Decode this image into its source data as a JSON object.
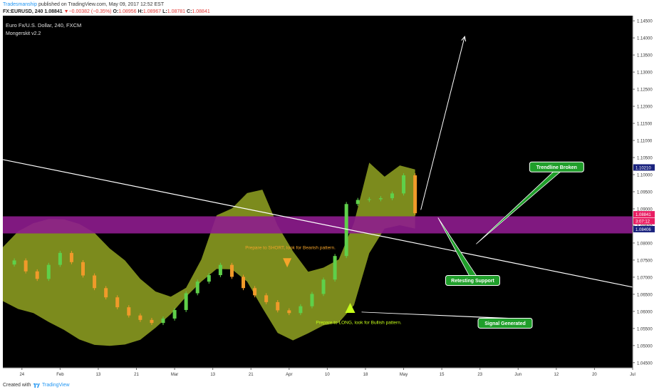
{
  "header": {
    "author": "Tradesmanship",
    "published": " published on TradingView.com, May 09, 2017 12:52 EST",
    "symbol": "FX:EURUSD, 240",
    "last_price": "1.08841",
    "change": "−0.00382 (−0.35%)",
    "open_label": "O:",
    "open": "1.08956",
    "high_label": "H:",
    "high": "1.08967",
    "low_label": "L:",
    "low": "1.08781",
    "close_label": "C:",
    "close": "1.08841"
  },
  "footer": {
    "created_with": "Created with",
    "brand": "TradingView"
  },
  "colors": {
    "background": "#000000",
    "band": "#8a9a20",
    "zone": "#8e1c8e",
    "annotation_box": "#1f9e2a",
    "candle_up": "#5fd04a",
    "candle_down": "#f09a2a",
    "trendline": "#ffffff"
  },
  "chart_data": {
    "type": "line",
    "title": "Euro Fx/U.S. Dollar, 240, FXCM",
    "subtitle": "Mongerskit v2.2",
    "x_ticks": [
      "24",
      "Feb",
      "13",
      "21",
      "Mar",
      "13",
      "21",
      "Apr",
      "10",
      "18",
      "May",
      "15",
      "23",
      "Jun",
      "12",
      "20",
      "Jul"
    ],
    "y_ticks": [
      "1.14500",
      "1.14000",
      "1.13500",
      "1.13000",
      "1.12500",
      "1.12000",
      "1.11500",
      "1.11000",
      "1.10500",
      "1.10000",
      "1.09500",
      "1.09000",
      "1.08500",
      "1.08000",
      "1.07500",
      "1.07000",
      "1.06500",
      "1.06000",
      "1.05500",
      "1.05000",
      "1.04500"
    ],
    "ylim": [
      1.0435,
      1.1465
    ],
    "x_range": [
      0,
      16.5
    ],
    "price_labels": [
      {
        "text": "1.10210",
        "value": 1.1021,
        "color": "#1a237e"
      },
      {
        "text": "1.08841",
        "value": 1.08841,
        "color": "#e91e63"
      },
      {
        "text": "3:07:12",
        "value": 1.0864,
        "color": "#e91e63"
      },
      {
        "text": "1.08406",
        "value": 1.08406,
        "color": "#1a237e"
      }
    ],
    "support_zone": [
      1.0828,
      1.0878
    ],
    "trendline": {
      "x": [
        0,
        16.5
      ],
      "y": [
        1.1044,
        1.0671
      ]
    },
    "forecast_arrow": {
      "x": [
        10.95,
        12.1
      ],
      "y": [
        1.0897,
        1.1404
      ]
    },
    "close_series": {
      "x": [
        0,
        0.3,
        0.6,
        0.9,
        1.2,
        1.5,
        1.8,
        2.1,
        2.4,
        2.7,
        3,
        3.3,
        3.6,
        3.9,
        4.2,
        4.5,
        4.8,
        5.1,
        5.4,
        5.7,
        6,
        6.3,
        6.6,
        6.9,
        7.2,
        7.5,
        7.8,
        8.1,
        8.4,
        8.7,
        9,
        9.3,
        9.6,
        9.9,
        10.2,
        10.5,
        10.8
      ],
      "y": [
        1.0737,
        1.0749,
        1.0717,
        1.0695,
        1.0736,
        1.0771,
        1.0744,
        1.0705,
        1.0668,
        1.0641,
        1.0612,
        1.0588,
        1.0575,
        1.0566,
        1.0579,
        1.0604,
        1.0653,
        1.0687,
        1.0706,
        1.0736,
        1.0701,
        1.0668,
        1.0647,
        1.0627,
        1.0603,
        1.0595,
        1.0615,
        1.0651,
        1.0693,
        1.0762,
        1.0914,
        1.0926,
        1.0928,
        1.0931,
        1.0945,
        1.0998,
        1.0887
      ]
    },
    "band": {
      "x": [
        0,
        0.4,
        0.8,
        1.2,
        1.6,
        2,
        2.4,
        2.8,
        3.2,
        3.6,
        4,
        4.4,
        4.8,
        5.2,
        5.6,
        6,
        6.4,
        6.8,
        7.2,
        7.6,
        8,
        8.4,
        8.8,
        9.2,
        9.6,
        10,
        10.4,
        10.8
      ],
      "upper": [
        1.0788,
        1.0834,
        1.0858,
        1.087,
        1.0869,
        1.0856,
        1.083,
        1.0784,
        1.0749,
        1.0695,
        1.0658,
        1.0643,
        1.0669,
        1.0752,
        1.0881,
        1.0901,
        1.0946,
        1.0956,
        1.0851,
        1.0776,
        1.0716,
        1.0728,
        1.0752,
        1.0859,
        1.1035,
        1.0994,
        1.1027,
        1.1015
      ],
      "lower": [
        1.063,
        1.0607,
        1.0595,
        1.0569,
        1.0546,
        1.0518,
        1.0502,
        1.0499,
        1.0503,
        1.0517,
        1.0552,
        1.0592,
        1.0643,
        1.0687,
        1.0724,
        1.0723,
        1.0687,
        1.061,
        1.0537,
        1.0515,
        1.0536,
        1.0559,
        1.0567,
        1.0618,
        1.077,
        1.0842,
        1.0852,
        1.0842
      ]
    },
    "signals": [
      {
        "type": "short",
        "x": 7.45,
        "y": 1.0743,
        "color": "#f5a42a"
      },
      {
        "type": "long",
        "x": 9.1,
        "y": 1.0608,
        "color": "#c6ff1a"
      }
    ],
    "signal_texts": [
      {
        "text": "Prepare to SHORT, look for Bearish pattern.",
        "x": 6.35,
        "y": 1.0782,
        "color": "#f5a42a"
      },
      {
        "text": "Prepare to LONG, look for Bullish pattern.",
        "x": 8.2,
        "y": 1.0563,
        "color": "#c6ff1a"
      }
    ],
    "callouts": [
      {
        "text": "Trendline Broken",
        "x": 13.8,
        "y": 1.1037,
        "target_x": 12.4,
        "target_y": 1.0797
      },
      {
        "text": "Retesting Support",
        "x": 11.6,
        "y": 1.0705,
        "target_x": 11.4,
        "target_y": 1.0874
      },
      {
        "text": "Signal Generated",
        "x": 12.45,
        "y": 1.058,
        "target_x": 9.4,
        "target_y": 1.0598
      }
    ]
  }
}
